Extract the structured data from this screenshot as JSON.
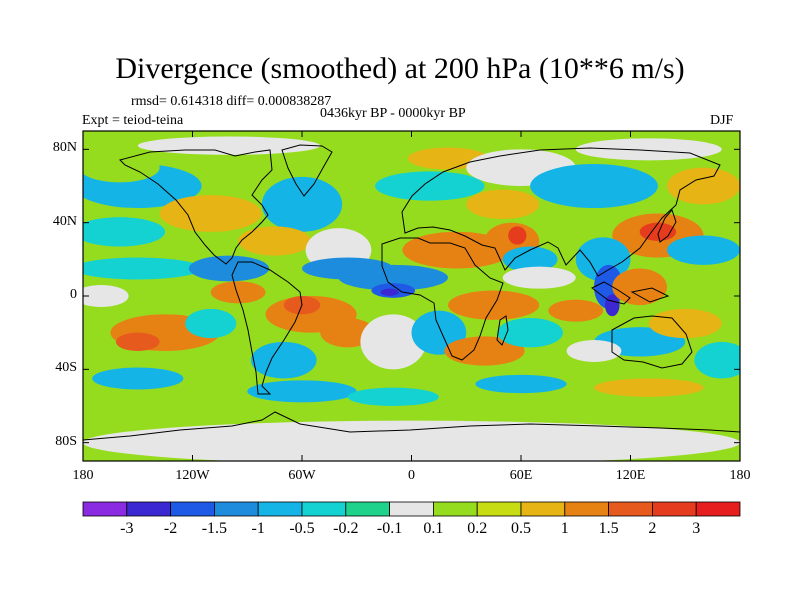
{
  "title": "Divergence (smoothed) at 200 hPa (10**6 m/s)",
  "stats": "rmsd= 0.614318 diff= 0.000838287",
  "period": "0436kyr BP - 0000kyr BP",
  "experiment": "Expt = teiod-teina",
  "season": "DJF",
  "x_axis": {
    "tick_labels": [
      "180",
      "120W",
      "60W",
      "0",
      "60E",
      "120E",
      "180"
    ],
    "tick_values": [
      -180,
      -120,
      -60,
      0,
      60,
      120,
      180
    ]
  },
  "y_axis": {
    "tick_labels": [
      "80N",
      "40N",
      "0",
      "40S",
      "80S"
    ],
    "tick_values": [
      80,
      40,
      0,
      -40,
      -80
    ]
  },
  "colorbar": {
    "labels": [
      "-3",
      "-2",
      "-1.5",
      "-1",
      "-0.5",
      "-0.2",
      "-0.1",
      "0.1",
      "0.2",
      "0.5",
      "1",
      "1.5",
      "2",
      "3"
    ],
    "colors": [
      "#8a2be2",
      "#3c28d2",
      "#1e5ae6",
      "#1e8cdc",
      "#14b4e6",
      "#14d2d2",
      "#1ed28c",
      "#e6e6e6",
      "#96dc1e",
      "#c8dc14",
      "#e6b414",
      "#e68214",
      "#e65a1e",
      "#e63c1e",
      "#e61e1e"
    ]
  },
  "map_regions": [
    {
      "color": "#14b4e6",
      "lon": -150,
      "lat": 60,
      "rx": 35,
      "ry": 12
    },
    {
      "color": "#96dc1e",
      "lon": -160,
      "lat": 70,
      "rx": 22,
      "ry": 8
    },
    {
      "color": "#14d2d2",
      "lon": -160,
      "lat": 35,
      "rx": 25,
      "ry": 8
    },
    {
      "color": "#e6b414",
      "lon": -110,
      "lat": 45,
      "rx": 28,
      "ry": 10
    },
    {
      "color": "#14d2d2",
      "lon": -150,
      "lat": 15,
      "rx": 35,
      "ry": 6
    },
    {
      "color": "#1e8cdc",
      "lon": -100,
      "lat": 15,
      "rx": 22,
      "ry": 7
    },
    {
      "color": "#e6e6e6",
      "lon": -170,
      "lat": 0,
      "rx": 15,
      "ry": 6
    },
    {
      "color": "#e68214",
      "lon": -135,
      "lat": -20,
      "rx": 30,
      "ry": 10
    },
    {
      "color": "#e65a1e",
      "lon": -150,
      "lat": -25,
      "rx": 12,
      "ry": 5
    },
    {
      "color": "#e68214",
      "lon": -95,
      "lat": 2,
      "rx": 15,
      "ry": 6
    },
    {
      "color": "#14d2d2",
      "lon": -110,
      "lat": -15,
      "rx": 14,
      "ry": 8
    },
    {
      "color": "#14b4e6",
      "lon": -150,
      "lat": -45,
      "rx": 25,
      "ry": 6
    },
    {
      "color": "#14b4e6",
      "lon": -60,
      "lat": 50,
      "rx": 22,
      "ry": 15
    },
    {
      "color": "#e6b414",
      "lon": -75,
      "lat": 30,
      "rx": 20,
      "ry": 8
    },
    {
      "color": "#e6e6e6",
      "lon": -40,
      "lat": 25,
      "rx": 18,
      "ry": 12
    },
    {
      "color": "#1e8cdc",
      "lon": -35,
      "lat": 15,
      "rx": 25,
      "ry": 6
    },
    {
      "color": "#e68214",
      "lon": -55,
      "lat": -10,
      "rx": 25,
      "ry": 10
    },
    {
      "color": "#e65a1e",
      "lon": -60,
      "lat": -5,
      "rx": 10,
      "ry": 5
    },
    {
      "color": "#14b4e6",
      "lon": -70,
      "lat": -35,
      "rx": 18,
      "ry": 10
    },
    {
      "color": "#e68214",
      "lon": -35,
      "lat": -20,
      "rx": 15,
      "ry": 8
    },
    {
      "color": "#e6e6e6",
      "lon": -10,
      "lat": -25,
      "rx": 18,
      "ry": 15
    },
    {
      "color": "#14b4e6",
      "lon": -60,
      "lat": -52,
      "rx": 30,
      "ry": 6
    },
    {
      "color": "#e6b414",
      "lon": 20,
      "lat": 75,
      "rx": 22,
      "ry": 6
    },
    {
      "color": "#14d2d2",
      "lon": 10,
      "lat": 60,
      "rx": 30,
      "ry": 8
    },
    {
      "color": "#e6e6e6",
      "lon": 60,
      "lat": 70,
      "rx": 30,
      "ry": 10
    },
    {
      "color": "#14b4e6",
      "lon": 100,
      "lat": 60,
      "rx": 35,
      "ry": 12
    },
    {
      "color": "#e6e6e6",
      "lon": 130,
      "lat": 80,
      "rx": 40,
      "ry": 6
    },
    {
      "color": "#e6b414",
      "lon": 50,
      "lat": 50,
      "rx": 20,
      "ry": 8
    },
    {
      "color": "#e68214",
      "lon": 25,
      "lat": 25,
      "rx": 30,
      "ry": 10
    },
    {
      "color": "#1e8cdc",
      "lon": -10,
      "lat": 10,
      "rx": 30,
      "ry": 7
    },
    {
      "color": "#1e5ae6",
      "lon": -10,
      "lat": 3,
      "rx": 12,
      "ry": 4
    },
    {
      "color": "#3c28d2",
      "lon": -12,
      "lat": 2,
      "rx": 5,
      "ry": 2
    },
    {
      "color": "#e68214",
      "lon": 55,
      "lat": 30,
      "rx": 15,
      "ry": 10
    },
    {
      "color": "#e63c1e",
      "lon": 58,
      "lat": 33,
      "rx": 5,
      "ry": 5
    },
    {
      "color": "#14b4e6",
      "lon": 65,
      "lat": 20,
      "rx": 15,
      "ry": 7
    },
    {
      "color": "#e68214",
      "lon": 45,
      "lat": -5,
      "rx": 25,
      "ry": 8
    },
    {
      "color": "#14b4e6",
      "lon": 15,
      "lat": -20,
      "rx": 15,
      "ry": 12
    },
    {
      "color": "#e68214",
      "lon": 40,
      "lat": -30,
      "rx": 22,
      "ry": 8
    },
    {
      "color": "#14d2d2",
      "lon": 65,
      "lat": -20,
      "rx": 18,
      "ry": 8
    },
    {
      "color": "#e6e6e6",
      "lon": 70,
      "lat": 10,
      "rx": 20,
      "ry": 6
    },
    {
      "color": "#e68214",
      "lon": 135,
      "lat": 33,
      "rx": 25,
      "ry": 12
    },
    {
      "color": "#e63c1e",
      "lon": 135,
      "lat": 35,
      "rx": 10,
      "ry": 5
    },
    {
      "color": "#14b4e6",
      "lon": 105,
      "lat": 20,
      "rx": 15,
      "ry": 12
    },
    {
      "color": "#1e5ae6",
      "lon": 108,
      "lat": 5,
      "rx": 8,
      "ry": 12
    },
    {
      "color": "#3c28d2",
      "lon": 110,
      "lat": -5,
      "rx": 4,
      "ry": 6
    },
    {
      "color": "#e68214",
      "lon": 125,
      "lat": 5,
      "rx": 15,
      "ry": 10
    },
    {
      "color": "#e68214",
      "lon": 90,
      "lat": -8,
      "rx": 15,
      "ry": 6
    },
    {
      "color": "#14b4e6",
      "lon": 160,
      "lat": 25,
      "rx": 20,
      "ry": 8
    },
    {
      "color": "#14b4e6",
      "lon": 125,
      "lat": -25,
      "rx": 25,
      "ry": 8
    },
    {
      "color": "#e6b414",
      "lon": 150,
      "lat": -15,
      "rx": 20,
      "ry": 8
    },
    {
      "color": "#14d2d2",
      "lon": 170,
      "lat": -35,
      "rx": 15,
      "ry": 10
    },
    {
      "color": "#e6e6e6",
      "lon": 100,
      "lat": -30,
      "rx": 15,
      "ry": 6
    },
    {
      "color": "#e6b414",
      "lon": 160,
      "lat": 60,
      "rx": 20,
      "ry": 10
    },
    {
      "color": "#e6b414",
      "lon": 130,
      "lat": -50,
      "rx": 30,
      "ry": 5
    },
    {
      "color": "#14b4e6",
      "lon": 60,
      "lat": -48,
      "rx": 25,
      "ry": 5
    },
    {
      "color": "#14d2d2",
      "lon": -10,
      "lat": -55,
      "rx": 25,
      "ry": 5
    },
    {
      "color": "#96dc1e",
      "lon": -40,
      "lat": 75,
      "rx": 20,
      "ry": 6
    },
    {
      "color": "#e6e6e6",
      "lon": -100,
      "lat": 82,
      "rx": 50,
      "ry": 5
    },
    {
      "color": "#e6e6e6",
      "lon": 0,
      "lat": -80,
      "rx": 180,
      "ry": 12
    }
  ]
}
